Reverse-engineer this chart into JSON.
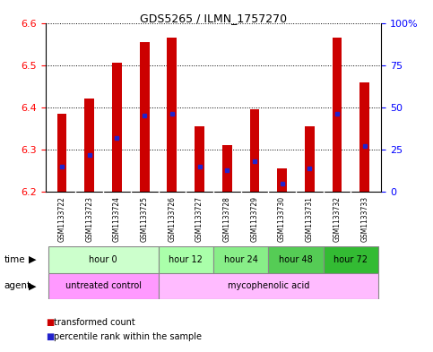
{
  "title": "GDS5265 / ILMN_1757270",
  "samples": [
    "GSM1133722",
    "GSM1133723",
    "GSM1133724",
    "GSM1133725",
    "GSM1133726",
    "GSM1133727",
    "GSM1133728",
    "GSM1133729",
    "GSM1133730",
    "GSM1133731",
    "GSM1133732",
    "GSM1133733"
  ],
  "transformed_counts": [
    6.385,
    6.42,
    6.505,
    6.555,
    6.565,
    6.355,
    6.31,
    6.395,
    6.255,
    6.355,
    6.565,
    6.46
  ],
  "percentile_ranks": [
    15,
    22,
    32,
    45,
    46,
    15,
    13,
    18,
    5,
    14,
    46,
    27
  ],
  "ylim_left": [
    6.2,
    6.6
  ],
  "ylim_right": [
    0,
    100
  ],
  "yticks_left": [
    6.2,
    6.3,
    6.4,
    6.5,
    6.6
  ],
  "yticks_right": [
    0,
    25,
    50,
    75,
    100
  ],
  "ytick_labels_right": [
    "0",
    "25",
    "50",
    "75",
    "100%"
  ],
  "bar_color": "#cc0000",
  "percentile_color": "#2222cc",
  "bar_bottom": 6.2,
  "time_groups": [
    {
      "label": "hour 0",
      "start": 0,
      "end": 3,
      "color": "#ccffcc"
    },
    {
      "label": "hour 12",
      "start": 4,
      "end": 5,
      "color": "#aaffaa"
    },
    {
      "label": "hour 24",
      "start": 6,
      "end": 7,
      "color": "#88ee88"
    },
    {
      "label": "hour 48",
      "start": 8,
      "end": 9,
      "color": "#55cc55"
    },
    {
      "label": "hour 72",
      "start": 10,
      "end": 11,
      "color": "#33bb33"
    }
  ],
  "agent_groups": [
    {
      "label": "untreated control",
      "start": 0,
      "end": 3,
      "color": "#ff99ff"
    },
    {
      "label": "mycophenolic acid",
      "start": 4,
      "end": 11,
      "color": "#ffbbff"
    }
  ],
  "bg_color": "#ffffff",
  "bar_width": 0.35,
  "grid_color": "#000000",
  "sample_box_color": "#cccccc",
  "border_color": "#888888"
}
